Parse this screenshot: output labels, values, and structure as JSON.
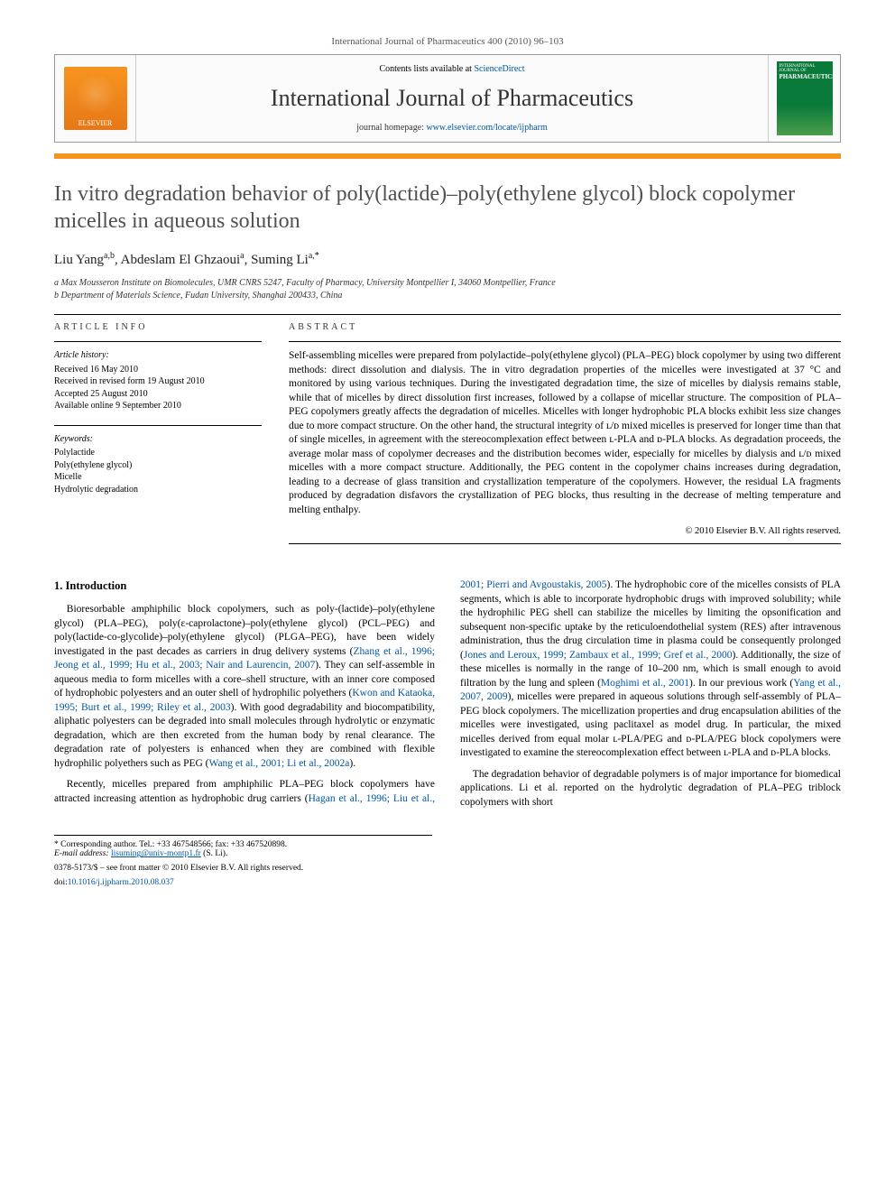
{
  "header": {
    "citation": "International Journal of Pharmaceutics 400 (2010) 96–103",
    "contents_prefix": "Contents lists available at ",
    "contents_link": "ScienceDirect",
    "journal_name": "International Journal of Pharmaceutics",
    "homepage_prefix": "journal homepage: ",
    "homepage_url": "www.elsevier.com/locate/ijpharm",
    "publisher_logo_label": "ELSEVIER",
    "cover_label": "PHARMACEUTICS"
  },
  "article": {
    "title": "In vitro degradation behavior of poly(lactide)–poly(ethylene glycol) block copolymer micelles in aqueous solution",
    "authors_html": "Liu Yang",
    "author1": "Liu Yang",
    "author1_aff": "a,b",
    "author2": "Abdeslam El Ghzaoui",
    "author2_aff": "a",
    "author3": "Suming Li",
    "author3_aff": "a,",
    "corr_mark": "*",
    "aff_a": "a Max Mousseron Institute on Biomolecules, UMR CNRS 5247, Faculty of Pharmacy, University Montpellier I, 34060 Montpellier, France",
    "aff_b": "b Department of Materials Science, Fudan University, Shanghai 200433, China"
  },
  "info": {
    "head": "ARTICLE INFO",
    "history_label": "Article history:",
    "received": "Received 16 May 2010",
    "revised": "Received in revised form 19 August 2010",
    "accepted": "Accepted 25 August 2010",
    "online": "Available online 9 September 2010",
    "keywords_label": "Keywords:",
    "kw1": "Polylactide",
    "kw2": "Poly(ethylene glycol)",
    "kw3": "Micelle",
    "kw4": "Hydrolytic degradation"
  },
  "abstract": {
    "head": "ABSTRACT",
    "text": "Self-assembling micelles were prepared from polylactide–poly(ethylene glycol) (PLA–PEG) block copolymer by using two different methods: direct dissolution and dialysis. The in vitro degradation properties of the micelles were investigated at 37 °C and monitored by using various techniques. During the investigated degradation time, the size of micelles by dialysis remains stable, while that of micelles by direct dissolution first increases, followed by a collapse of micellar structure. The composition of PLA–PEG copolymers greatly affects the degradation of micelles. Micelles with longer hydrophobic PLA blocks exhibit less size changes due to more compact structure. On the other hand, the structural integrity of ʟ/ᴅ mixed micelles is preserved for longer time than that of single micelles, in agreement with the stereocomplexation effect between ʟ-PLA and ᴅ-PLA blocks. As degradation proceeds, the average molar mass of copolymer decreases and the distribution becomes wider, especially for micelles by dialysis and ʟ/ᴅ mixed micelles with a more compact structure. Additionally, the PEG content in the copolymer chains increases during degradation, leading to a decrease of glass transition and crystallization temperature of the copolymers. However, the residual LA fragments produced by degradation disfavors the crystallization of PEG blocks, thus resulting in the decrease of melting temperature and melting enthalpy.",
    "copyright": "© 2010 Elsevier B.V. All rights reserved."
  },
  "body": {
    "section_heading": "1. Introduction",
    "p1_a": "Bioresorbable amphiphilic block copolymers, such as poly-(lactide)–poly(ethylene glycol) (PLA–PEG), poly(ε-caprolactone)–poly(ethylene glycol) (PCL–PEG) and poly(lactide-co-glycolide)–poly(ethylene glycol) (PLGA–PEG), have been widely investigated in the past decades as carriers in drug delivery systems (",
    "p1_cite1": "Zhang et al., 1996; Jeong et al., 1999; Hu et al., 2003; Nair and Laurencin, 2007",
    "p1_b": "). They can self-assemble in aqueous media to form micelles with a core–shell structure, with an inner core composed of hydrophobic polyesters and an outer shell of hydrophilic polyethers (",
    "p1_cite2": "Kwon and Kataoka, 1995; Burt et al., 1999; Riley et al., 2003",
    "p1_c": "). With good degradability and biocompatibility, aliphatic polyesters can be degraded into small molecules through hydrolytic or enzymatic degradation, which are then excreted from the human body by renal clearance. The degradation rate of polyesters is enhanced when they are combined with flexible hydrophilic polyethers such as PEG (",
    "p1_cite3": "Wang et al., 2001; Li et al., 2002a",
    "p1_d": ").",
    "p2_a": "Recently, micelles prepared from amphiphilic PLA–PEG block copolymers have attracted increasing attention as hydrophobic drug carriers (",
    "p2_cite1": "Hagan et al., 1996; Liu et al., 2001; Pierri and Avgoustakis, 2005",
    "p2_b": "). The hydrophobic core of the micelles consists of PLA segments, which is able to incorporate hydrophobic drugs with improved solubility; while the hydrophilic PEG shell can stabilize the micelles by limiting the opsonification and subsequent non-specific uptake by the reticuloendothelial system (RES) after intravenous administration, thus the drug circulation time in plasma could be consequently prolonged (",
    "p2_cite2": "Jones and Leroux, 1999; Zambaux et al., 1999; Gref et al., 2000",
    "p2_c": "). Additionally, the size of these micelles is normally in the range of 10–200 nm, which is small enough to avoid filtration by the lung and spleen (",
    "p2_cite3": "Moghimi et al., 2001",
    "p2_d": "). In our previous work (",
    "p2_cite4": "Yang et al., 2007, 2009",
    "p2_e": "), micelles were prepared in aqueous solutions through self-assembly of PLA–PEG block copolymers. The micellization properties and drug encapsulation abilities of the micelles were investigated, using paclitaxel as model drug. In particular, the mixed micelles derived from equal molar ʟ-PLA/PEG and ᴅ-PLA/PEG block copolymers were investigated to examine the stereocomplexation effect between ʟ-PLA and ᴅ-PLA blocks.",
    "p3": "The degradation behavior of degradable polymers is of major importance for biomedical applications. Li et al. reported on the hydrolytic degradation of PLA–PEG triblock copolymers with short"
  },
  "footer": {
    "corr_note": "* Corresponding author. Tel.: +33 467548566; fax: +33 467520898.",
    "email_label": "E-mail address: ",
    "email": "lisuming@univ-montp1.fr",
    "email_person": " (S. Li).",
    "front_matter": "0378-5173/$ – see front matter © 2010 Elsevier B.V. All rights reserved.",
    "doi_label": "doi:",
    "doi": "10.1016/j.ijpharm.2010.08.037"
  },
  "colors": {
    "accent_orange": "#f7941e",
    "link_blue": "#0056a3",
    "cover_green": "#0a7a3a",
    "title_gray": "#505050"
  }
}
